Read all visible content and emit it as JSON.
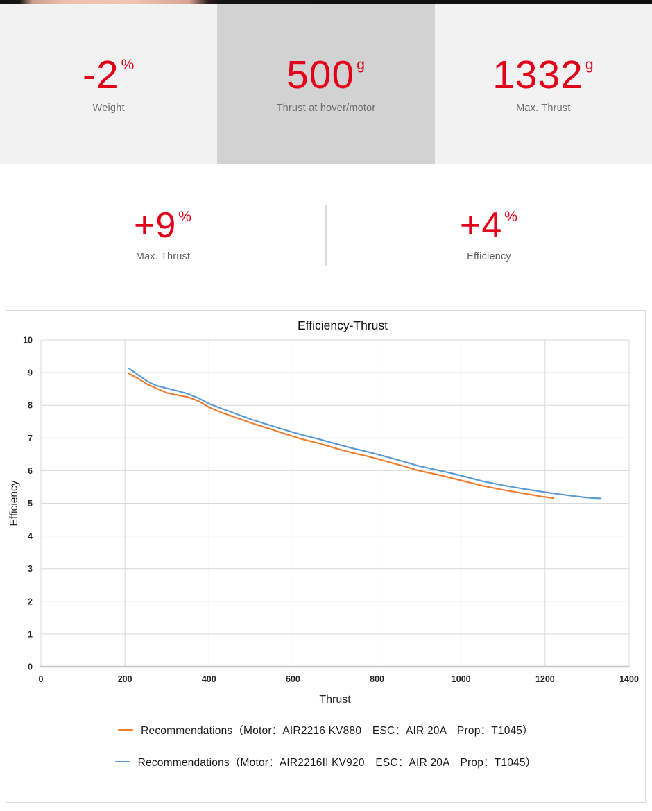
{
  "colors": {
    "accent_red": "#e2001a",
    "label_gray": "#6e6e6e",
    "band_light_gray": "#f2f2f2",
    "band_mid_gray": "#d2d2d2",
    "grid_gray": "#d9d9d9",
    "axis_gray": "#c6c6c6",
    "series_orange": "#ed7d31",
    "series_blue": "#5b9bd5"
  },
  "stats_primary": [
    {
      "value": "-2",
      "unit": "%",
      "label": "Weight"
    },
    {
      "value": "500",
      "unit": "g",
      "label": "Thrust at hover/motor"
    },
    {
      "value": "1332",
      "unit": "g",
      "label": "Max. Thrust"
    }
  ],
  "stats_secondary": [
    {
      "value": "+9",
      "unit": "%",
      "label": "Max. Thrust"
    },
    {
      "value": "+4",
      "unit": "%",
      "label": "Efficiency"
    }
  ],
  "chart_data": {
    "type": "line",
    "title": "Efficiency-Thrust",
    "xlabel": "Thrust",
    "ylabel": "Efficiency",
    "xlim": [
      0,
      1400
    ],
    "ylim": [
      0,
      10
    ],
    "xticks": [
      0,
      200,
      400,
      600,
      800,
      1000,
      1200,
      1400
    ],
    "yticks": [
      0,
      1,
      2,
      3,
      4,
      5,
      6,
      7,
      8,
      9,
      10
    ],
    "grid": true,
    "legend_position": "bottom",
    "series": [
      {
        "name": "Recommendations（Motor：AIR2216 KV880　ESC：AIR 20A　Prop：T1045）",
        "color": "#ed7d31",
        "points": [
          [
            210,
            8.97
          ],
          [
            235,
            8.79
          ],
          [
            255,
            8.63
          ],
          [
            275,
            8.52
          ],
          [
            300,
            8.38
          ],
          [
            325,
            8.31
          ],
          [
            350,
            8.25
          ],
          [
            375,
            8.13
          ],
          [
            400,
            7.94
          ],
          [
            430,
            7.78
          ],
          [
            460,
            7.64
          ],
          [
            500,
            7.46
          ],
          [
            540,
            7.3
          ],
          [
            580,
            7.13
          ],
          [
            620,
            6.97
          ],
          [
            660,
            6.84
          ],
          [
            700,
            6.69
          ],
          [
            740,
            6.55
          ],
          [
            780,
            6.43
          ],
          [
            820,
            6.29
          ],
          [
            860,
            6.15
          ],
          [
            900,
            6.0
          ],
          [
            950,
            5.86
          ],
          [
            1000,
            5.7
          ],
          [
            1050,
            5.54
          ],
          [
            1100,
            5.41
          ],
          [
            1150,
            5.3
          ],
          [
            1190,
            5.21
          ],
          [
            1220,
            5.16
          ]
        ]
      },
      {
        "name": "Recommendations（Motor：AIR2216II KV920　ESC：AIR 20A　Prop：T1045）",
        "color": "#5b9bd5",
        "points": [
          [
            210,
            9.12
          ],
          [
            235,
            8.9
          ],
          [
            255,
            8.72
          ],
          [
            275,
            8.6
          ],
          [
            300,
            8.52
          ],
          [
            325,
            8.44
          ],
          [
            350,
            8.35
          ],
          [
            375,
            8.22
          ],
          [
            400,
            8.05
          ],
          [
            430,
            7.9
          ],
          [
            460,
            7.76
          ],
          [
            500,
            7.57
          ],
          [
            540,
            7.41
          ],
          [
            580,
            7.25
          ],
          [
            620,
            7.1
          ],
          [
            660,
            6.97
          ],
          [
            700,
            6.83
          ],
          [
            740,
            6.69
          ],
          [
            780,
            6.57
          ],
          [
            820,
            6.43
          ],
          [
            860,
            6.29
          ],
          [
            900,
            6.14
          ],
          [
            950,
            6.0
          ],
          [
            1000,
            5.85
          ],
          [
            1050,
            5.68
          ],
          [
            1100,
            5.55
          ],
          [
            1150,
            5.44
          ],
          [
            1200,
            5.34
          ],
          [
            1250,
            5.25
          ],
          [
            1290,
            5.19
          ],
          [
            1315,
            5.16
          ],
          [
            1332,
            5.15
          ]
        ]
      }
    ]
  }
}
